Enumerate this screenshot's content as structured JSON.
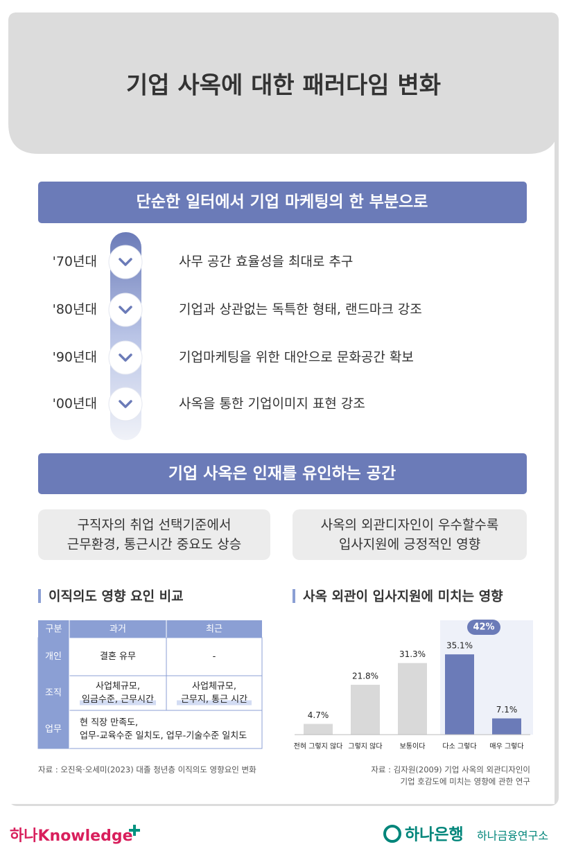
{
  "header": {
    "title": "기업 사옥에 대한 패러다임 변화"
  },
  "section1": {
    "title": "단순한 일터에서 기업 마케팅의 한 부분으로",
    "timeline": [
      {
        "year": "'70년대",
        "text": "사무 공간 효율성을 최대로 추구"
      },
      {
        "year": "'80년대",
        "text": "기업과 상관없는 독특한 형태, 랜드마크 강조"
      },
      {
        "year": "'90년대",
        "text": "기업마케팅을 위한 대안으로 문화공간 확보"
      },
      {
        "year": "'00년대",
        "text": "사옥을 통한 기업이미지 표현 강조"
      }
    ]
  },
  "section2": {
    "title": "기업 사옥은 인재를 유인하는 공간",
    "boxes": [
      [
        "구직자의 취업 선택기준에서",
        "근무환경, 통근시간 중요도 상승"
      ],
      [
        "사옥의 외관디자인이 우수할수록",
        "입사지원에 긍정적인 영향"
      ]
    ]
  },
  "table": {
    "title": "이직의도 영향 요인 비교",
    "header": [
      "구분",
      "과거",
      "최근"
    ],
    "rows": [
      [
        "개인",
        "결혼 유무",
        "-"
      ],
      [
        "조직",
        [
          "사업체규모,",
          "임금수준, 근무시간"
        ],
        [
          "사업체규모,",
          "근무지, 통근 시간"
        ]
      ],
      [
        "업무",
        [
          "현 직장 만족도,",
          "업무-교육수준 일치도, 업무-기술수준 일치도"
        ]
      ]
    ],
    "source": "자료 : 오진욱·오세미(2023) 대졸 청년층 이직의도 영향요인 변화"
  },
  "chart_data": {
    "type": "bar",
    "title": "사옥 외관이 입사지원에 미치는 영향",
    "categories": [
      "전혀 그렇지 않다",
      "그렇지 않다",
      "보통이다",
      "다소 그렇다",
      "매우 그렇다"
    ],
    "values": [
      4.7,
      21.8,
      31.3,
      35.1,
      7.1
    ],
    "value_labels": [
      "4.7%",
      "21.8%",
      "31.3%",
      "35.1%",
      "7.1%"
    ],
    "colors": [
      "#d9d9d9",
      "#d9d9d9",
      "#d9d9d9",
      "#6b7bb8",
      "#6b7bb8"
    ],
    "annotation": "42%",
    "source": [
      "자료 : 김자원(2009) 기업 사옥의 외관디자인이",
      "기업 호감도에 미치는 영향에 관한 연구"
    ]
  },
  "footer": {
    "left": "하나Knowledge",
    "bank": "하나은행",
    "institute": "하나금융연구소"
  }
}
